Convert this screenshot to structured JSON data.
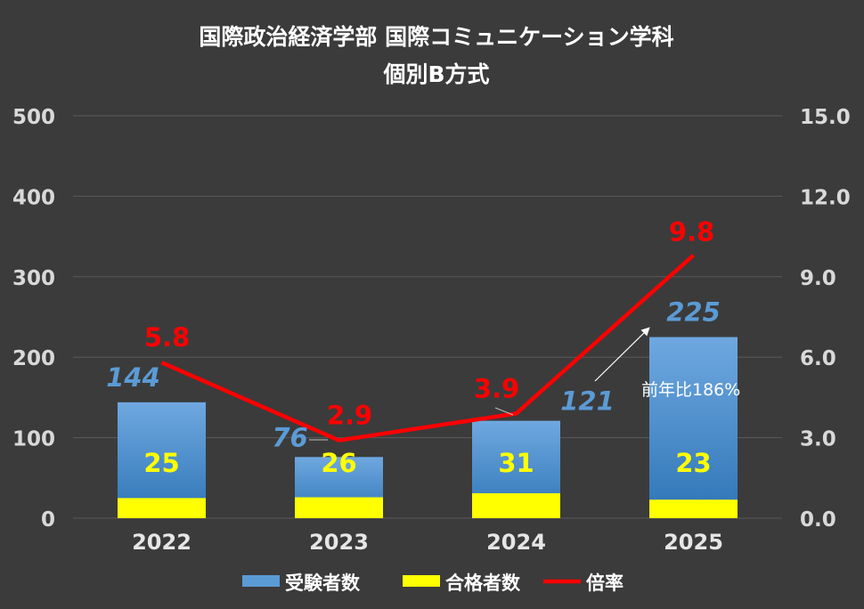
{
  "chart_data": {
    "type": "bar",
    "title": "国際政治経済学部 国際コミュニケーション学科",
    "subtitle": "個別B方式",
    "categories": [
      "2022",
      "2023",
      "2024",
      "2025"
    ],
    "series": [
      {
        "name": "受験者数",
        "kind": "bar",
        "axis": "left",
        "color": "#5b9bd5",
        "values": [
          144,
          76,
          121,
          225
        ]
      },
      {
        "name": "合格者数",
        "kind": "bar",
        "axis": "left",
        "color": "#ffff00",
        "values": [
          25,
          26,
          31,
          23
        ]
      },
      {
        "name": "倍率",
        "kind": "line",
        "axis": "right",
        "color": "#ff0000",
        "values": [
          5.8,
          2.9,
          3.9,
          9.8
        ]
      }
    ],
    "y_left": {
      "min": 0,
      "max": 500,
      "ticks": [
        "0",
        "100",
        "200",
        "300",
        "400",
        "500"
      ]
    },
    "y_right": {
      "min": 0,
      "max": 15,
      "ticks": [
        "0.0",
        "3.0",
        "6.0",
        "9.0",
        "12.0",
        "15.0"
      ]
    },
    "data_labels": {
      "applicants": [
        "144",
        "76",
        "121",
        "225"
      ],
      "passers": [
        "25",
        "26",
        "31",
        "23"
      ],
      "ratio": [
        "5.8",
        "2.9",
        "3.9",
        "9.8"
      ]
    },
    "annotation": "前年比186%",
    "grid": true,
    "legend_position": "bottom"
  },
  "colors": {
    "background": "#3b3b3b",
    "grid": "#5a5a5a",
    "applicants": "#5b9bd5",
    "applicants_dark": "#2e75b6",
    "passers": "#ffff00",
    "ratio": "#ff0000",
    "applicant_label": "#5b9bd5",
    "passer_label": "#ffff00",
    "ratio_label": "#ff0000"
  }
}
